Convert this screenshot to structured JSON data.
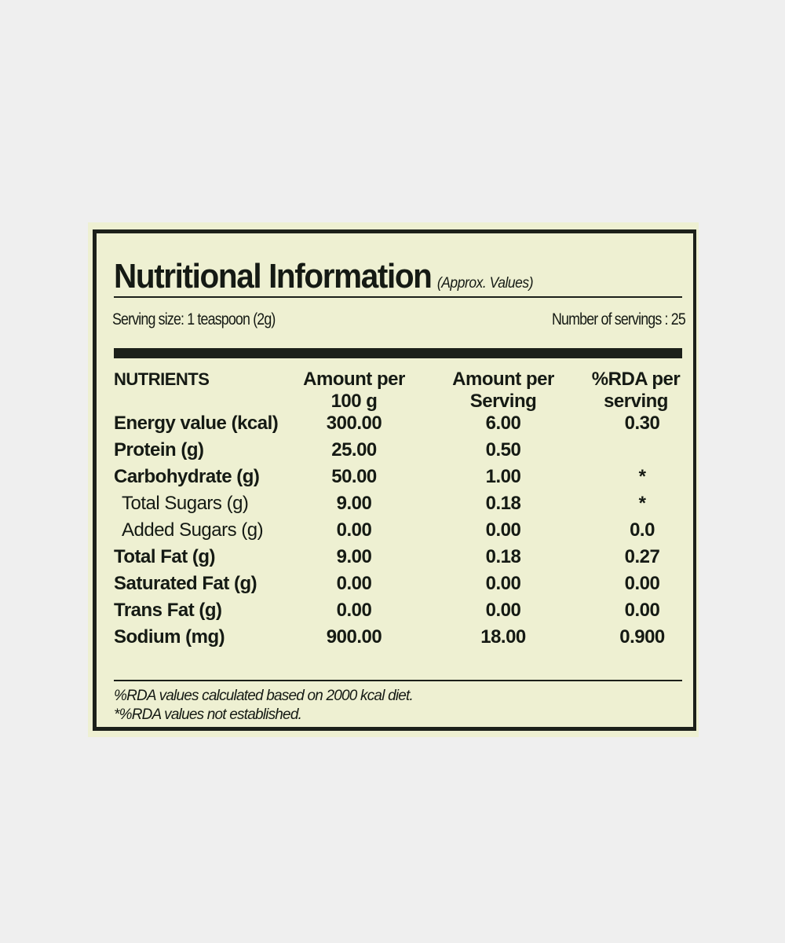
{
  "label": {
    "title": "Nutritional Information",
    "title_note": "(Approx. Values)",
    "serving_size": "Serving size: 1 teaspoon (2g)",
    "servings_count": "Number of servings : 25",
    "headers": [
      "NUTRIENTS",
      "Amount per 100 g",
      "Amount per Serving",
      "%RDA per serving"
    ],
    "rows": [
      {
        "name": "Energy value (kcal)",
        "per100": "300.00",
        "perServing": "6.00",
        "rda": "0.30",
        "sub": false
      },
      {
        "name": "Protein (g)",
        "per100": "25.00",
        "perServing": "0.50",
        "rda": "",
        "sub": false
      },
      {
        "name": "Carbohydrate (g)",
        "per100": "50.00",
        "perServing": "1.00",
        "rda": "*",
        "sub": false
      },
      {
        "name": "Total Sugars (g)",
        "per100": "9.00",
        "perServing": "0.18",
        "rda": "*",
        "sub": true
      },
      {
        "name": "Added Sugars (g)",
        "per100": "0.00",
        "perServing": "0.00",
        "rda": "0.0",
        "sub": true
      },
      {
        "name": "Total Fat (g)",
        "per100": "9.00",
        "perServing": "0.18",
        "rda": "0.27",
        "sub": false
      },
      {
        "name": "Saturated Fat (g)",
        "per100": "0.00",
        "perServing": "0.00",
        "rda": "0.00",
        "sub": false
      },
      {
        "name": "Trans Fat (g)",
        "per100": "0.00",
        "perServing": "0.00",
        "rda": "0.00",
        "sub": false
      },
      {
        "name": "Sodium (mg)",
        "per100": "900.00",
        "perServing": "18.00",
        "rda": "0.900",
        "sub": false
      }
    ],
    "footnotes": [
      "%RDA values calculated based on 2000 kcal diet.",
      "*%RDA values not established."
    ]
  },
  "colors": {
    "label_bg": "#eef0d2",
    "ink": "#1c201a",
    "page_bg": "#efefef"
  }
}
